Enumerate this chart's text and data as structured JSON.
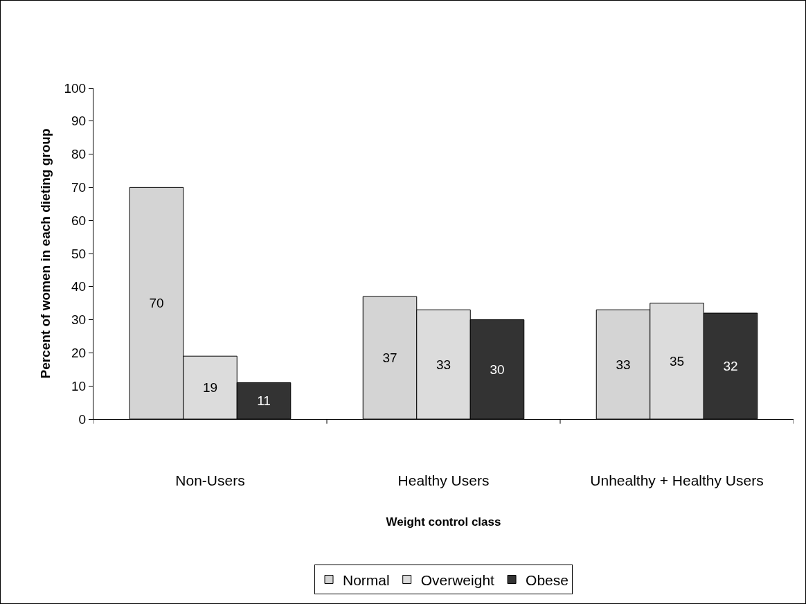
{
  "chart_data": {
    "type": "bar",
    "xlabel": "Weight control class",
    "ylabel": "Percent of women in each dieting group",
    "categories": [
      "Non-Users",
      "Healthy Users",
      "Unhealthy + Healthy Users"
    ],
    "series": [
      {
        "name": "Normal",
        "color": "#d4d4d4",
        "values": [
          70,
          37,
          33
        ]
      },
      {
        "name": "Overweight",
        "color": "#dcdcdc",
        "values": [
          19,
          33,
          35
        ]
      },
      {
        "name": "Obese",
        "color": "#333333",
        "values": [
          11,
          30,
          32
        ]
      }
    ],
    "ylim": [
      0,
      100
    ],
    "yticks": [
      0,
      10,
      20,
      30,
      40,
      50,
      60,
      70,
      80,
      90,
      100
    ],
    "grid": false,
    "legend": "bottom",
    "data_labels": true
  }
}
